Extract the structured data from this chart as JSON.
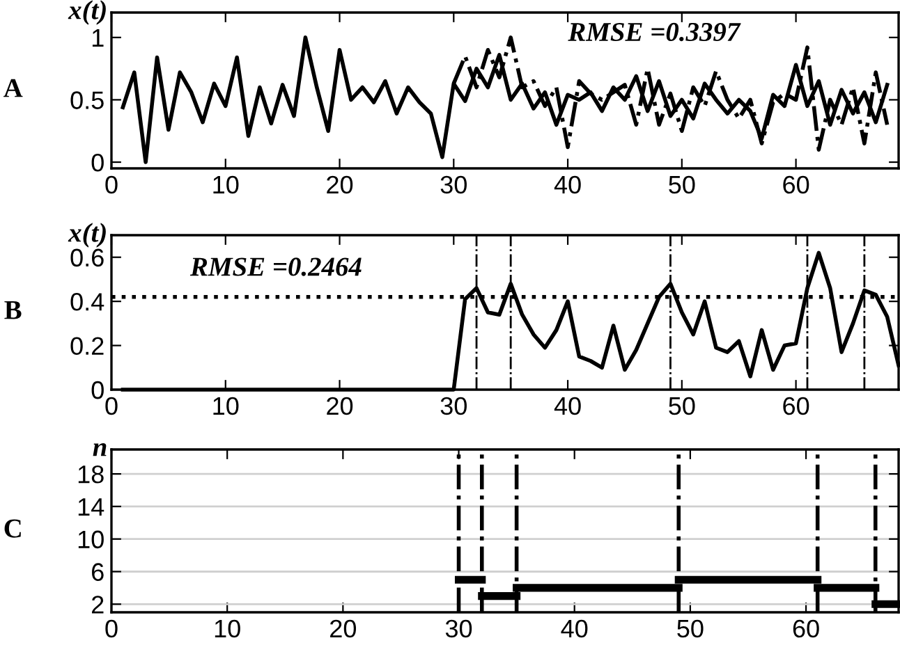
{
  "chart_data": [
    {
      "type": "line",
      "title": "A",
      "ylabel": "x(t)",
      "xlim": [
        0,
        69
      ],
      "ylim": [
        -0.05,
        1.2
      ],
      "xticks": [
        0,
        10,
        20,
        30,
        40,
        50,
        60
      ],
      "yticks": [
        0,
        0.5,
        1
      ],
      "grid": false,
      "legend": false,
      "annotations": [
        "RMSE =0.3397"
      ],
      "series": [
        {
          "color": "#000000",
          "line_style": "dashdot",
          "x": [
            30,
            31,
            32,
            33,
            34,
            35,
            36,
            37,
            38,
            39,
            40,
            41,
            42,
            43,
            44,
            45,
            46,
            47,
            48,
            49,
            50,
            51,
            52,
            53,
            54,
            55,
            56,
            57,
            58,
            59,
            60,
            61,
            62,
            63,
            64,
            65,
            66,
            67,
            68
          ],
          "values": [
            0.63,
            0.85,
            0.6,
            0.9,
            0.68,
            1.0,
            0.6,
            0.65,
            0.45,
            0.6,
            0.12,
            0.65,
            0.55,
            0.5,
            0.56,
            0.62,
            0.3,
            0.75,
            0.3,
            0.55,
            0.25,
            0.6,
            0.45,
            0.73,
            0.5,
            0.35,
            0.5,
            0.15,
            0.48,
            0.55,
            0.5,
            0.92,
            0.1,
            0.5,
            0.3,
            0.6,
            0.15,
            0.72,
            0.3
          ]
        },
        {
          "color": "#000000",
          "line_style": "solid",
          "x": [
            1,
            2,
            3,
            4,
            5,
            6,
            7,
            8,
            9,
            10,
            11,
            12,
            13,
            14,
            15,
            16,
            17,
            18,
            19,
            20,
            21,
            22,
            23,
            24,
            25,
            26,
            27,
            28,
            29,
            30,
            31,
            32,
            33,
            34,
            35,
            36,
            37,
            38,
            39,
            40,
            41,
            42,
            43,
            44,
            45,
            46,
            47,
            48,
            49,
            50,
            51,
            52,
            53,
            54,
            55,
            56,
            57,
            58,
            59,
            60,
            61,
            62,
            63,
            64,
            65,
            66,
            67,
            68
          ],
          "values": [
            0.44,
            0.72,
            0.0,
            0.84,
            0.26,
            0.72,
            0.56,
            0.32,
            0.63,
            0.45,
            0.84,
            0.21,
            0.6,
            0.31,
            0.62,
            0.37,
            1.0,
            0.6,
            0.25,
            0.9,
            0.5,
            0.6,
            0.48,
            0.65,
            0.39,
            0.6,
            0.48,
            0.39,
            0.04,
            0.63,
            0.49,
            0.75,
            0.6,
            0.86,
            0.5,
            0.63,
            0.43,
            0.56,
            0.3,
            0.54,
            0.5,
            0.56,
            0.41,
            0.6,
            0.5,
            0.69,
            0.41,
            0.65,
            0.37,
            0.5,
            0.35,
            0.63,
            0.5,
            0.39,
            0.5,
            0.41,
            0.19,
            0.54,
            0.45,
            0.78,
            0.45,
            0.65,
            0.3,
            0.58,
            0.39,
            0.56,
            0.32,
            0.62
          ]
        }
      ]
    },
    {
      "type": "line",
      "title": "B",
      "ylabel": "x(t)",
      "xlim": [
        0,
        69
      ],
      "ylim": [
        0,
        0.7
      ],
      "xticks": [
        0,
        10,
        20,
        30,
        40,
        50,
        60
      ],
      "yticks": [
        0,
        0.2,
        0.4,
        0.6
      ],
      "grid": false,
      "legend": false,
      "annotations": [
        "RMSE =0.2464"
      ],
      "ref_lines": [
        {
          "axis": "y",
          "value": 0.42,
          "line_style": "dotted",
          "color": "#000000"
        },
        {
          "axis": "x",
          "value": 32,
          "line_style": "dashdot",
          "color": "#000000"
        },
        {
          "axis": "x",
          "value": 35,
          "line_style": "dashdot",
          "color": "#000000"
        },
        {
          "axis": "x",
          "value": 49,
          "line_style": "dashdot",
          "color": "#000000"
        },
        {
          "axis": "x",
          "value": 61,
          "line_style": "dashdot",
          "color": "#000000"
        },
        {
          "axis": "x",
          "value": 66,
          "line_style": "dashdot",
          "color": "#000000"
        }
      ],
      "series": [
        {
          "color": "#000000",
          "line_style": "solid",
          "x": [
            1,
            2,
            3,
            4,
            5,
            6,
            7,
            8,
            9,
            10,
            11,
            12,
            13,
            14,
            15,
            16,
            17,
            18,
            19,
            20,
            21,
            22,
            23,
            24,
            25,
            26,
            27,
            28,
            29,
            30,
            31,
            32,
            33,
            34,
            35,
            36,
            37,
            38,
            39,
            40,
            41,
            42,
            43,
            44,
            45,
            46,
            47,
            48,
            49,
            50,
            51,
            52,
            53,
            54,
            55,
            56,
            57,
            58,
            59,
            60,
            61,
            62,
            63,
            64,
            65,
            66,
            67,
            68,
            69
          ],
          "values": [
            0,
            0,
            0,
            0,
            0,
            0,
            0,
            0,
            0,
            0,
            0,
            0,
            0,
            0,
            0,
            0,
            0,
            0,
            0,
            0,
            0,
            0,
            0,
            0,
            0,
            0,
            0,
            0,
            0,
            0,
            0.41,
            0.46,
            0.35,
            0.34,
            0.48,
            0.34,
            0.25,
            0.19,
            0.27,
            0.4,
            0.15,
            0.13,
            0.1,
            0.29,
            0.09,
            0.18,
            0.3,
            0.42,
            0.48,
            0.35,
            0.25,
            0.4,
            0.19,
            0.17,
            0.22,
            0.06,
            0.27,
            0.09,
            0.2,
            0.21,
            0.46,
            0.62,
            0.46,
            0.17,
            0.3,
            0.45,
            0.43,
            0.33,
            0.11
          ]
        }
      ]
    },
    {
      "type": "line",
      "title": "C",
      "ylabel": "n",
      "xlim": [
        0,
        68
      ],
      "ylim": [
        1,
        21
      ],
      "xticks": [
        0,
        10,
        20,
        30,
        40,
        50,
        60
      ],
      "yticks": [
        2,
        6,
        10,
        14,
        18
      ],
      "grid": "y",
      "legend": false,
      "ref_lines": [
        {
          "axis": "x",
          "value": 30,
          "line_style": "dashdot",
          "color": "#000000"
        },
        {
          "axis": "x",
          "value": 32,
          "line_style": "dashdot",
          "color": "#000000"
        },
        {
          "axis": "x",
          "value": 35,
          "line_style": "dashdot",
          "color": "#000000"
        },
        {
          "axis": "x",
          "value": 49,
          "line_style": "dashdot",
          "color": "#000000"
        },
        {
          "axis": "x",
          "value": 61,
          "line_style": "dashdot",
          "color": "#000000"
        },
        {
          "axis": "x",
          "value": 66,
          "line_style": "dashdot",
          "color": "#000000"
        }
      ],
      "series": [
        {
          "color": "#000000",
          "line_style": "solid",
          "x": [
            30,
            32
          ],
          "values": [
            5,
            5
          ]
        },
        {
          "color": "#000000",
          "line_style": "solid",
          "x": [
            32,
            35
          ],
          "values": [
            3,
            3
          ]
        },
        {
          "color": "#000000",
          "line_style": "solid",
          "x": [
            35,
            49
          ],
          "values": [
            4,
            4
          ]
        },
        {
          "color": "#000000",
          "line_style": "solid",
          "x": [
            49,
            61
          ],
          "values": [
            5,
            5
          ]
        },
        {
          "color": "#000000",
          "line_style": "solid",
          "x": [
            61,
            66
          ],
          "values": [
            4,
            4
          ]
        },
        {
          "color": "#000000",
          "line_style": "solid",
          "x": [
            66,
            68
          ],
          "values": [
            2,
            2
          ]
        }
      ]
    }
  ]
}
